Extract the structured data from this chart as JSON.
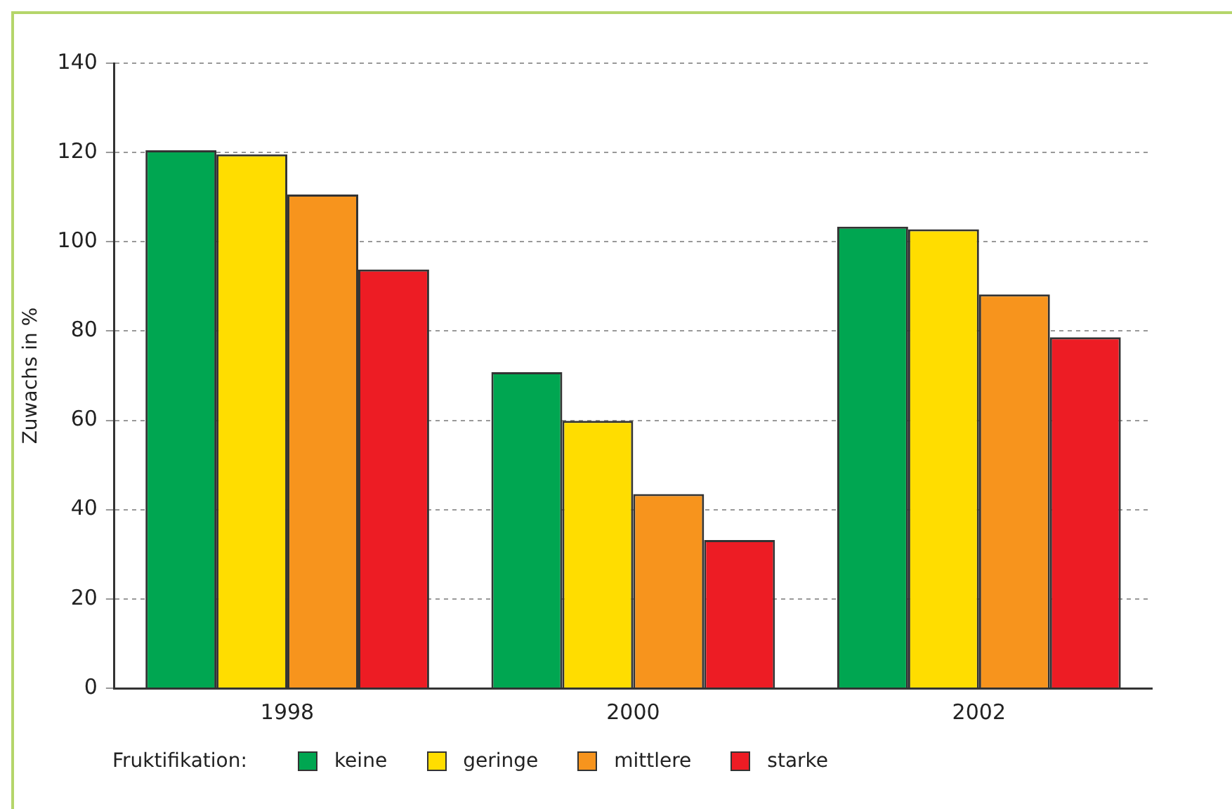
{
  "chart_data": {
    "type": "bar",
    "ylabel": "Zuwachs in %",
    "legend_title": "Fruktifikation:",
    "categories": [
      "1998",
      "2000",
      "2002"
    ],
    "series": [
      {
        "name": "keine",
        "color": "#00a651",
        "values": [
          120.5,
          70.8,
          103.4
        ]
      },
      {
        "name": "geringe",
        "color": "#ffdd00",
        "values": [
          119.6,
          59.9,
          102.8
        ]
      },
      {
        "name": "mittlere",
        "color": "#f7941d",
        "values": [
          110.6,
          43.5,
          88.2
        ]
      },
      {
        "name": "starke",
        "color": "#ed1c24",
        "values": [
          93.8,
          33.2,
          78.6
        ]
      }
    ],
    "ylim": [
      0,
      140
    ],
    "yticks": [
      0,
      20,
      40,
      60,
      80,
      100,
      120,
      140
    ],
    "grid": "y",
    "legend": "bottom"
  }
}
